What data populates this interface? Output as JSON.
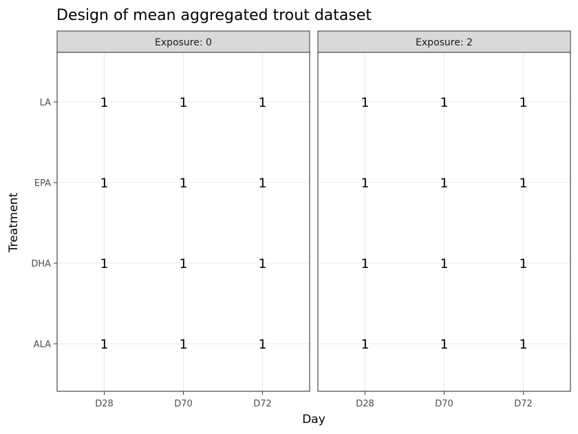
{
  "chart_data": {
    "type": "table",
    "title": "Design of mean aggregated trout dataset",
    "xlabel": "Day",
    "ylabel": "Treatment",
    "facet_prefix": "Exposure: ",
    "facets": [
      "0",
      "2"
    ],
    "x_categories": [
      "D28",
      "D70",
      "D72"
    ],
    "y_categories": [
      "LA",
      "EPA",
      "DHA",
      "ALA"
    ],
    "grid": true,
    "cells": [
      {
        "facet": "0",
        "x": "D28",
        "y": "LA",
        "value": 1
      },
      {
        "facet": "0",
        "x": "D70",
        "y": "LA",
        "value": 1
      },
      {
        "facet": "0",
        "x": "D72",
        "y": "LA",
        "value": 1
      },
      {
        "facet": "0",
        "x": "D28",
        "y": "EPA",
        "value": 1
      },
      {
        "facet": "0",
        "x": "D70",
        "y": "EPA",
        "value": 1
      },
      {
        "facet": "0",
        "x": "D72",
        "y": "EPA",
        "value": 1
      },
      {
        "facet": "0",
        "x": "D28",
        "y": "DHA",
        "value": 1
      },
      {
        "facet": "0",
        "x": "D70",
        "y": "DHA",
        "value": 1
      },
      {
        "facet": "0",
        "x": "D72",
        "y": "DHA",
        "value": 1
      },
      {
        "facet": "0",
        "x": "D28",
        "y": "ALA",
        "value": 1
      },
      {
        "facet": "0",
        "x": "D70",
        "y": "ALA",
        "value": 1
      },
      {
        "facet": "0",
        "x": "D72",
        "y": "ALA",
        "value": 1
      },
      {
        "facet": "2",
        "x": "D28",
        "y": "LA",
        "value": 1
      },
      {
        "facet": "2",
        "x": "D70",
        "y": "LA",
        "value": 1
      },
      {
        "facet": "2",
        "x": "D72",
        "y": "LA",
        "value": 1
      },
      {
        "facet": "2",
        "x": "D28",
        "y": "EPA",
        "value": 1
      },
      {
        "facet": "2",
        "x": "D70",
        "y": "EPA",
        "value": 1
      },
      {
        "facet": "2",
        "x": "D72",
        "y": "EPA",
        "value": 1
      },
      {
        "facet": "2",
        "x": "D28",
        "y": "DHA",
        "value": 1
      },
      {
        "facet": "2",
        "x": "D70",
        "y": "DHA",
        "value": 1
      },
      {
        "facet": "2",
        "x": "D72",
        "y": "DHA",
        "value": 1
      },
      {
        "facet": "2",
        "x": "D28",
        "y": "ALA",
        "value": 1
      },
      {
        "facet": "2",
        "x": "D70",
        "y": "ALA",
        "value": 1
      },
      {
        "facet": "2",
        "x": "D72",
        "y": "ALA",
        "value": 1
      }
    ]
  },
  "colors": {
    "strip_fill": "#d9d9d9",
    "panel_border": "#333333",
    "grid": "#ebebeb",
    "tick": "#333333"
  }
}
